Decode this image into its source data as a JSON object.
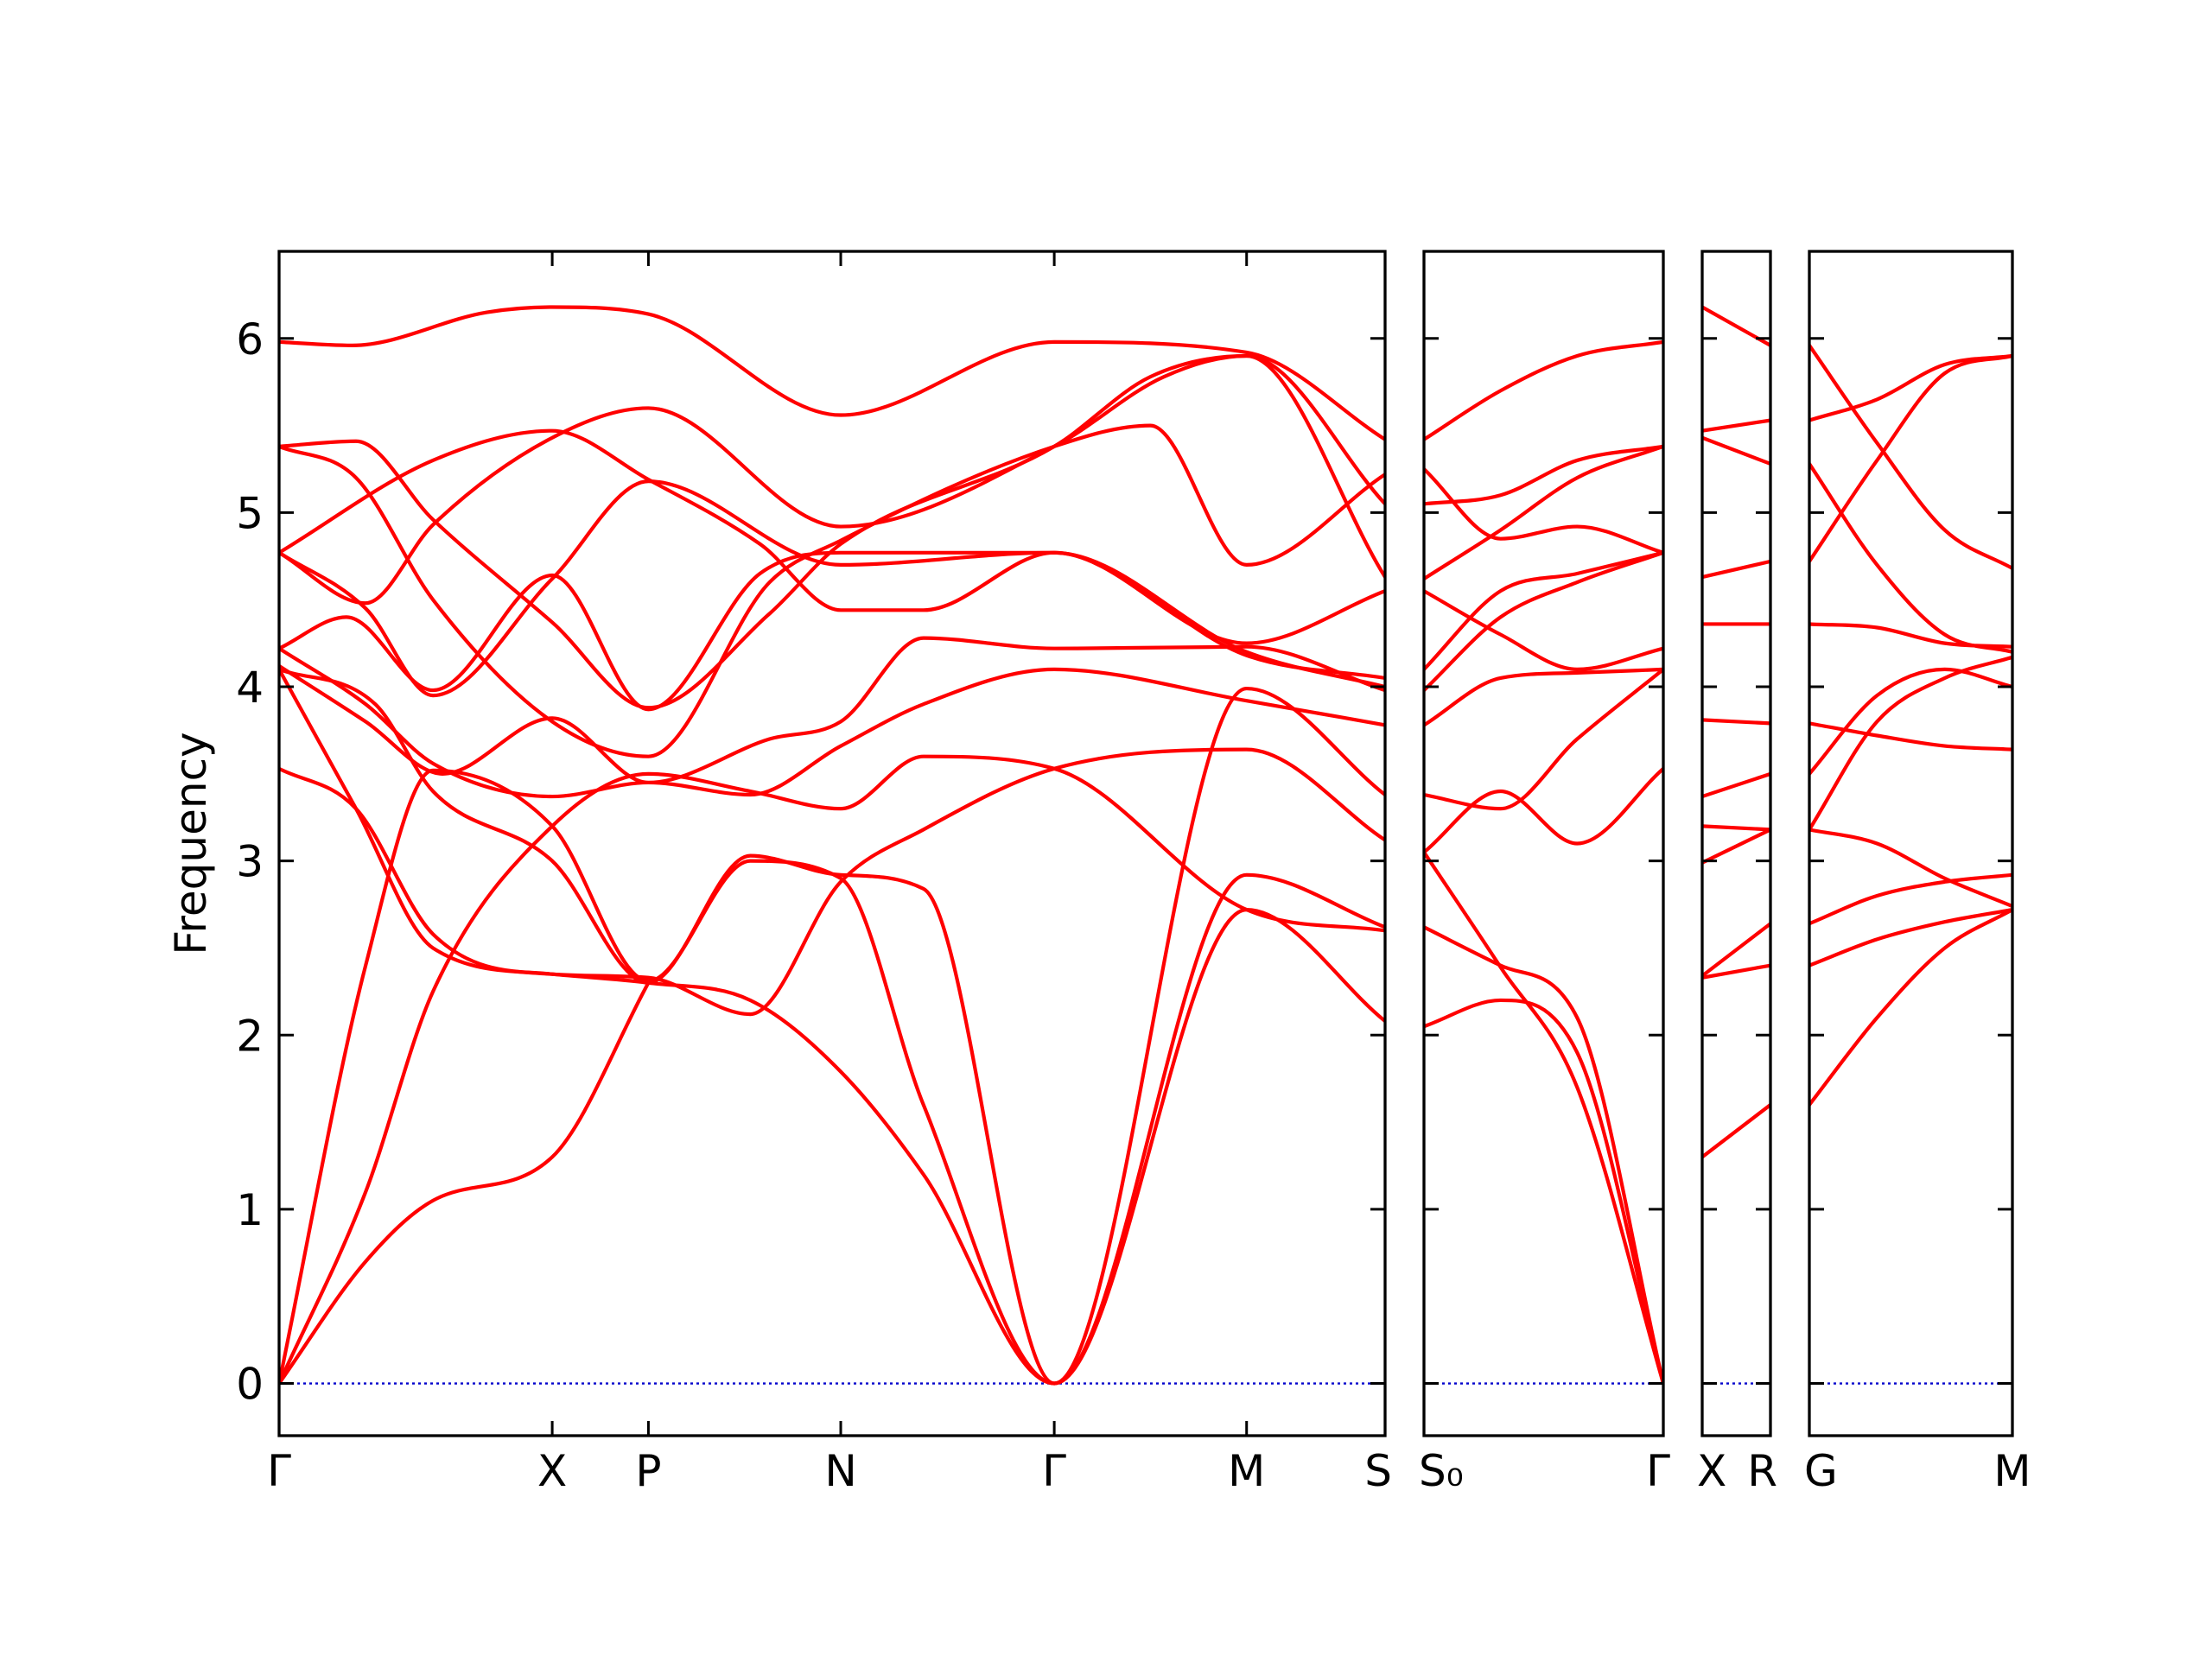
{
  "chart_data": {
    "type": "line",
    "title": "",
    "xlabel": "",
    "ylabel": "Frequency",
    "ylim": [
      -0.3,
      6.5
    ],
    "yticks": [
      0,
      1,
      2,
      3,
      4,
      5,
      6
    ],
    "grid": false,
    "legend": "none",
    "line_color": "#ff0000",
    "zero_line_color": "#0000cc",
    "panels": [
      {
        "xlim": [
          0,
          5.75
        ],
        "ticks": [
          {
            "x": 0,
            "label": "Γ"
          },
          {
            "x": 1.42,
            "label": "X"
          },
          {
            "x": 1.92,
            "label": "P"
          },
          {
            "x": 2.92,
            "label": "N"
          },
          {
            "x": 4.03,
            "label": "Γ"
          },
          {
            "x": 5.03,
            "label": "M"
          }
        ],
        "end_label": "S",
        "bands": [
          {
            "x": [
              0,
              0.38,
              1.08,
              1.42,
              1.92,
              2.92,
              4.03,
              5.03,
              5.75
            ],
            "y": [
              5.98,
              5.96,
              6.15,
              6.18,
              6.14,
              5.56,
              5.98,
              5.92,
              5.42
            ]
          },
          {
            "x": [
              0,
              0.4,
              0.8,
              1.42,
              1.92,
              2.55,
              2.92,
              4.03,
              4.53,
              5.03,
              5.75
            ],
            "y": [
              5.38,
              5.41,
              4.96,
              4.37,
              3.88,
              4.42,
              4.82,
              5.38,
              5.78,
              5.9,
              5.05
            ]
          },
          {
            "x": [
              0,
              0.4,
              0.8,
              1.42,
              1.92,
              2.55,
              2.92,
              4.03,
              4.53,
              5.03,
              5.75
            ],
            "y": [
              5.38,
              5.2,
              4.5,
              3.8,
              3.6,
              4.6,
              4.84,
              5.38,
              5.5,
              4.7,
              5.22
            ]
          },
          {
            "x": [
              0,
              0.45,
              0.8,
              1.42,
              1.92,
              2.92,
              4.03,
              4.6,
              5.03,
              5.75
            ],
            "y": [
              4.77,
              4.48,
              4.93,
              5.43,
              5.6,
              4.92,
              5.38,
              5.78,
              5.9,
              4.63
            ]
          },
          {
            "x": [
              0,
              0.8,
              1.42,
              1.92,
              2.5,
              2.92,
              3.35,
              4.03,
              5.03,
              5.75
            ],
            "y": [
              4.77,
              5.3,
              5.47,
              5.19,
              4.82,
              4.44,
              4.44,
              4.77,
              4.25,
              4.55
            ]
          },
          {
            "x": [
              0,
              0.45,
              0.8,
              1.42,
              1.92,
              2.92,
              4.03,
              5.03,
              5.75
            ],
            "y": [
              4.77,
              4.45,
              3.95,
              4.62,
              5.18,
              4.7,
              4.77,
              4.2,
              4.0
            ]
          },
          {
            "x": [
              0,
              0.35,
              0.8,
              1.42,
              1.92,
              2.5,
              2.92,
              4.03,
              5.03,
              5.75
            ],
            "y": [
              4.22,
              4.4,
              3.98,
              4.64,
              3.87,
              4.65,
              4.77,
              4.77,
              4.18,
              4.05
            ]
          },
          {
            "x": [
              0,
              0.45,
              0.85,
              1.42,
              1.92,
              2.55,
              2.92,
              3.35,
              4.03,
              5.03,
              5.75
            ],
            "y": [
              4.12,
              3.8,
              3.5,
              3.82,
              3.45,
              3.7,
              3.8,
              4.28,
              4.22,
              4.23,
              3.98
            ]
          },
          {
            "x": [
              0,
              0.45,
              0.8,
              1.42,
              1.92,
              2.45,
              2.92,
              3.35,
              4.03,
              5.03,
              5.75
            ],
            "y": [
              4.22,
              3.9,
              3.56,
              3.37,
              3.45,
              3.38,
              3.66,
              3.9,
              4.1,
              3.92,
              3.78
            ]
          },
          {
            "x": [
              0,
              0.5,
              0.8,
              1.42,
              1.92,
              2.45,
              2.92,
              3.35,
              4.03,
              5.03,
              5.75
            ],
            "y": [
              4.1,
              3.9,
              3.4,
              3.0,
              2.3,
              3.03,
              2.92,
              2.84,
              0.0,
              3.99,
              3.38
            ]
          },
          {
            "x": [
              0,
              0.4,
              0.8,
              1.42,
              1.92,
              2.45,
              2.92,
              3.35,
              4.03,
              5.03,
              5.75
            ],
            "y": [
              3.53,
              3.3,
              2.58,
              2.35,
              2.33,
              2.12,
              2.88,
              3.18,
              3.53,
              3.64,
              3.12
            ]
          },
          {
            "x": [
              0,
              0.4,
              0.8,
              1.42,
              1.92,
              2.45,
              2.92,
              3.35,
              4.03,
              5.03,
              5.75
            ],
            "y": [
              4.1,
              3.3,
              2.5,
              2.35,
              2.3,
              2.2,
              1.79,
              1.2,
              0.0,
              2.72,
              2.08
            ]
          },
          {
            "x": [
              0,
              0.45,
              0.8,
              1.42,
              1.92,
              2.45,
              2.92,
              3.35,
              4.03,
              5.03,
              5.75
            ],
            "y": [
              0.0,
              2.4,
              3.52,
              3.2,
              2.31,
              3.0,
              2.9,
              1.6,
              0.0,
              2.92,
              2.62
            ]
          },
          {
            "x": [
              0,
              0.45,
              0.8,
              1.42,
              1.92,
              2.45,
              2.92,
              3.35,
              4.03,
              5.03,
              5.75
            ],
            "y": [
              0.0,
              1.1,
              2.25,
              3.2,
              3.5,
              3.4,
              3.3,
              3.6,
              3.53,
              2.72,
              2.6
            ]
          },
          {
            "x": [
              0,
              0.45,
              0.8,
              1.42,
              1.92
            ],
            "y": [
              0.0,
              0.7,
              1.05,
              1.3,
              2.3
            ]
          }
        ]
      },
      {
        "xlim": [
          0,
          1.25
        ],
        "ticks": [
          {
            "x": 0,
            "label": "S₀"
          },
          {
            "x": 1.25,
            "label": "Γ"
          }
        ],
        "bands": [
          {
            "x": [
              0,
              0.4,
              0.8,
              1.25
            ],
            "y": [
              5.42,
              5.7,
              5.9,
              5.98
            ]
          },
          {
            "x": [
              0,
              0.4,
              0.8,
              1.25
            ],
            "y": [
              5.25,
              4.85,
              4.92,
              4.77
            ]
          },
          {
            "x": [
              0,
              0.4,
              0.8,
              1.25
            ],
            "y": [
              5.05,
              5.1,
              5.3,
              5.38
            ]
          },
          {
            "x": [
              0,
              0.4,
              0.8,
              1.25
            ],
            "y": [
              4.62,
              4.9,
              5.2,
              5.38
            ]
          },
          {
            "x": [
              0,
              0.4,
              0.8,
              1.25
            ],
            "y": [
              4.55,
              4.3,
              4.1,
              4.22
            ]
          },
          {
            "x": [
              0,
              0.4,
              0.8,
              1.25
            ],
            "y": [
              4.1,
              4.55,
              4.65,
              4.77
            ]
          },
          {
            "x": [
              0,
              0.4,
              0.8,
              1.25
            ],
            "y": [
              3.98,
              4.4,
              4.6,
              4.77
            ]
          },
          {
            "x": [
              0,
              0.4,
              0.8,
              1.25
            ],
            "y": [
              3.78,
              4.05,
              4.08,
              4.1
            ]
          },
          {
            "x": [
              0,
              0.4,
              0.8,
              1.25
            ],
            "y": [
              3.38,
              3.3,
              3.7,
              4.1
            ]
          },
          {
            "x": [
              0,
              0.4,
              0.8,
              1.25
            ],
            "y": [
              3.05,
              3.4,
              3.1,
              3.53
            ]
          },
          {
            "x": [
              0,
              0.4,
              0.8,
              1.25
            ],
            "y": [
              2.62,
              2.4,
              2.1,
              0.0
            ]
          },
          {
            "x": [
              0,
              0.4,
              0.8,
              1.25
            ],
            "y": [
              2.05,
              2.2,
              1.9,
              0.0
            ]
          },
          {
            "x": [
              0,
              0.4,
              0.8,
              1.25
            ],
            "y": [
              3.05,
              2.39,
              1.7,
              0.0
            ]
          }
        ]
      },
      {
        "xlim": [
          0,
          0.35
        ],
        "ticks": [
          {
            "x": 0,
            "label": "X"
          },
          {
            "x": 0.35,
            "label": "R"
          }
        ],
        "bands": [
          {
            "x": [
              0,
              0.35
            ],
            "y": [
              6.18,
              5.96
            ]
          },
          {
            "x": [
              0,
              0.35
            ],
            "y": [
              5.47,
              5.53
            ]
          },
          {
            "x": [
              0,
              0.35
            ],
            "y": [
              5.43,
              5.28
            ]
          },
          {
            "x": [
              0,
              0.35
            ],
            "y": [
              4.63,
              4.72
            ]
          },
          {
            "x": [
              0,
              0.35
            ],
            "y": [
              4.36,
              4.36
            ]
          },
          {
            "x": [
              0,
              0.35
            ],
            "y": [
              3.81,
              3.79
            ]
          },
          {
            "x": [
              0,
              0.35
            ],
            "y": [
              3.37,
              3.5
            ]
          },
          {
            "x": [
              0,
              0.35
            ],
            "y": [
              3.2,
              3.18
            ]
          },
          {
            "x": [
              0,
              0.35
            ],
            "y": [
              2.99,
              3.18
            ]
          },
          {
            "x": [
              0,
              0.35
            ],
            "y": [
              2.34,
              2.64
            ]
          },
          {
            "x": [
              0,
              0.35
            ],
            "y": [
              2.33,
              2.4
            ]
          },
          {
            "x": [
              0,
              0.35
            ],
            "y": [
              1.3,
              1.6
            ]
          }
        ]
      },
      {
        "xlim": [
          0,
          1.05
        ],
        "ticks": [
          {
            "x": 0,
            "label": "G"
          },
          {
            "x": 1.05,
            "label": "M"
          }
        ],
        "bands": [
          {
            "x": [
              0,
              0.35,
              0.7,
              1.05
            ],
            "y": [
              5.96,
              5.4,
              4.9,
              4.68
            ]
          },
          {
            "x": [
              0,
              0.35,
              0.7,
              1.05
            ],
            "y": [
              5.53,
              5.65,
              5.85,
              5.9
            ]
          },
          {
            "x": [
              0,
              0.35,
              0.7,
              1.05
            ],
            "y": [
              5.28,
              4.7,
              4.3,
              4.2
            ]
          },
          {
            "x": [
              0,
              0.35,
              0.7,
              1.05
            ],
            "y": [
              4.72,
              5.3,
              5.8,
              5.9
            ]
          },
          {
            "x": [
              0,
              0.35,
              0.7,
              1.05
            ],
            "y": [
              4.36,
              4.34,
              4.25,
              4.23
            ]
          },
          {
            "x": [
              0,
              0.35,
              0.7,
              1.05
            ],
            "y": [
              3.79,
              3.72,
              3.66,
              3.64
            ]
          },
          {
            "x": [
              0,
              0.35,
              0.7,
              1.05
            ],
            "y": [
              3.5,
              3.95,
              4.1,
              4.0
            ]
          },
          {
            "x": [
              0,
              0.35,
              0.7,
              1.05
            ],
            "y": [
              3.18,
              3.8,
              4.05,
              4.17
            ]
          },
          {
            "x": [
              0,
              0.35,
              0.7,
              1.05
            ],
            "y": [
              3.18,
              3.1,
              2.9,
              2.74
            ]
          },
          {
            "x": [
              0,
              0.35,
              0.7,
              1.05
            ],
            "y": [
              2.64,
              2.8,
              2.88,
              2.92
            ]
          },
          {
            "x": [
              0,
              0.35,
              0.7,
              1.05
            ],
            "y": [
              2.4,
              2.55,
              2.65,
              2.72
            ]
          },
          {
            "x": [
              0,
              0.35,
              0.7,
              1.05
            ],
            "y": [
              1.6,
              2.1,
              2.5,
              2.72
            ]
          }
        ]
      }
    ]
  }
}
